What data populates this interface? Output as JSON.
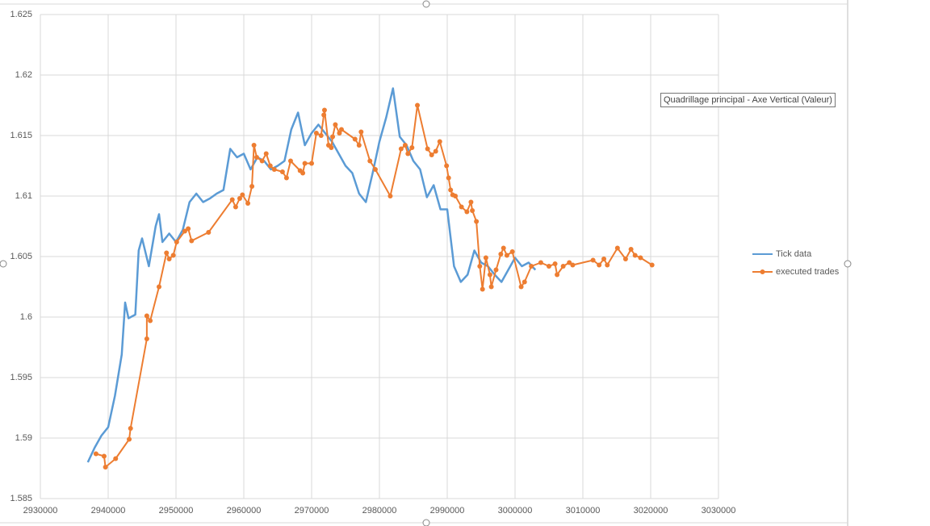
{
  "chart_data": {
    "type": "line",
    "xlim": [
      2930000,
      3030000
    ],
    "xticks": [
      2930000,
      2940000,
      2950000,
      2960000,
      2970000,
      2980000,
      2990000,
      3000000,
      3010000,
      3020000,
      3030000
    ],
    "ylim": [
      1.585,
      1.625
    ],
    "yticks": [
      1.585,
      1.59,
      1.595,
      1.6,
      1.605,
      1.61,
      1.615,
      1.62,
      1.625
    ],
    "grid": true,
    "legend": "right",
    "tooltip": "Quadrillage principal - Axe Vertical (Valeur)",
    "series": [
      {
        "name": "Tick data",
        "color": "#5b9bd5",
        "markers": false,
        "x": [
          2937000,
          2938000,
          2939000,
          2940000,
          2941000,
          2942000,
          2942500,
          2943000,
          2944000,
          2944500,
          2945000,
          2946000,
          2947000,
          2947500,
          2948000,
          2949000,
          2950000,
          2951000,
          2952000,
          2953000,
          2954000,
          2955000,
          2956000,
          2957000,
          2958000,
          2959000,
          2960000,
          2961000,
          2962000,
          2963000,
          2964000,
          2965000,
          2966000,
          2967000,
          2968000,
          2969000,
          2970000,
          2971000,
          2972000,
          2973000,
          2974000,
          2975000,
          2976000,
          2977000,
          2978000,
          2979000,
          2980000,
          2981000,
          2982000,
          2983000,
          2984000,
          2985000,
          2986000,
          2987000,
          2988000,
          2989000,
          2990000,
          2991000,
          2992000,
          2993000,
          2994000,
          2995000,
          2996000,
          2997000,
          2998000,
          2999000,
          3000000,
          3001000,
          3002000,
          3003000
        ],
        "values": [
          1.588,
          1.5892,
          1.5902,
          1.5909,
          1.5935,
          1.5969,
          1.6012,
          1.5999,
          1.6002,
          1.6055,
          1.6065,
          1.6042,
          1.6075,
          1.6085,
          1.6062,
          1.6069,
          1.6062,
          1.6072,
          1.6095,
          1.6102,
          1.6095,
          1.6098,
          1.6102,
          1.6105,
          1.6139,
          1.6132,
          1.6135,
          1.6122,
          1.6132,
          1.6129,
          1.6122,
          1.6125,
          1.6129,
          1.6155,
          1.6169,
          1.6142,
          1.6152,
          1.6159,
          1.6152,
          1.6145,
          1.6135,
          1.6125,
          1.6119,
          1.6102,
          1.6095,
          1.6119,
          1.6145,
          1.6165,
          1.6189,
          1.6149,
          1.6142,
          1.6129,
          1.6122,
          1.6099,
          1.6109,
          1.6089,
          1.6089,
          1.6042,
          1.6029,
          1.6035,
          1.6055,
          1.6045,
          1.6042,
          1.6035,
          1.6029,
          1.6039,
          1.6049,
          1.6042,
          1.6045,
          1.6039
        ]
      },
      {
        "name": "executed trades",
        "color": "#ed7d31",
        "markers": true,
        "x": [
          2938200,
          2939400,
          2939600,
          2941100,
          2943100,
          2943300,
          2945700,
          2945700,
          2946200,
          2947500,
          2948600,
          2949000,
          2949600,
          2950100,
          2951300,
          2951800,
          2952300,
          2954800,
          2958300,
          2958800,
          2959400,
          2959800,
          2960600,
          2961200,
          2961500,
          2961900,
          2962700,
          2963300,
          2963900,
          2964500,
          2965700,
          2966300,
          2966900,
          2968300,
          2968700,
          2969000,
          2970000,
          2970700,
          2971400,
          2971800,
          2971900,
          2972500,
          2972900,
          2973100,
          2973500,
          2974100,
          2974400,
          2976400,
          2977000,
          2977300,
          2978600,
          2979400,
          2981600,
          2983200,
          2983800,
          2984200,
          2984800,
          2985600,
          2987100,
          2987700,
          2988300,
          2988900,
          2989900,
          2990200,
          2990500,
          2990800,
          2991200,
          2992100,
          2992900,
          2993500,
          2993700,
          2994300,
          2994800,
          2995200,
          2995700,
          2996300,
          2996500,
          2997200,
          2997900,
          2998300,
          2998800,
          2999600,
          3000900,
          3001400,
          3002400,
          3003800,
          3005000,
          3005900,
          3006200,
          3007100,
          3008000,
          3008500,
          3011500,
          3012400,
          3013100,
          3013600,
          3015100,
          3016300,
          3017100,
          3017700,
          3018500,
          3020200
        ],
        "values": [
          1.5887,
          1.5885,
          1.5876,
          1.5883,
          1.5899,
          1.5908,
          1.5982,
          1.6001,
          1.5997,
          1.6025,
          1.6053,
          1.6048,
          1.6051,
          1.6062,
          1.6071,
          1.6073,
          1.6063,
          1.607,
          1.6097,
          1.6091,
          1.6098,
          1.6101,
          1.6094,
          1.6108,
          1.6142,
          1.6132,
          1.6129,
          1.6135,
          1.6125,
          1.6122,
          1.612,
          1.6115,
          1.6129,
          1.6121,
          1.6119,
          1.6127,
          1.6127,
          1.6152,
          1.615,
          1.6167,
          1.6171,
          1.6142,
          1.614,
          1.6149,
          1.6159,
          1.6152,
          1.6155,
          1.6147,
          1.6142,
          1.6153,
          1.6129,
          1.6122,
          1.61,
          1.6139,
          1.6142,
          1.6135,
          1.614,
          1.6175,
          1.6139,
          1.6134,
          1.6137,
          1.6145,
          1.6125,
          1.6115,
          1.6105,
          1.6101,
          1.61,
          1.6091,
          1.6087,
          1.6095,
          1.6088,
          1.6079,
          1.6042,
          1.6023,
          1.6049,
          1.6035,
          1.6025,
          1.6039,
          1.6052,
          1.6057,
          1.6051,
          1.6054,
          1.6025,
          1.6029,
          1.6042,
          1.6045,
          1.6042,
          1.6044,
          1.6035,
          1.6042,
          1.6045,
          1.6043,
          1.6047,
          1.6043,
          1.6048,
          1.6043,
          1.6057,
          1.6048,
          1.6056,
          1.6051,
          1.6049,
          1.6043
        ]
      }
    ]
  }
}
